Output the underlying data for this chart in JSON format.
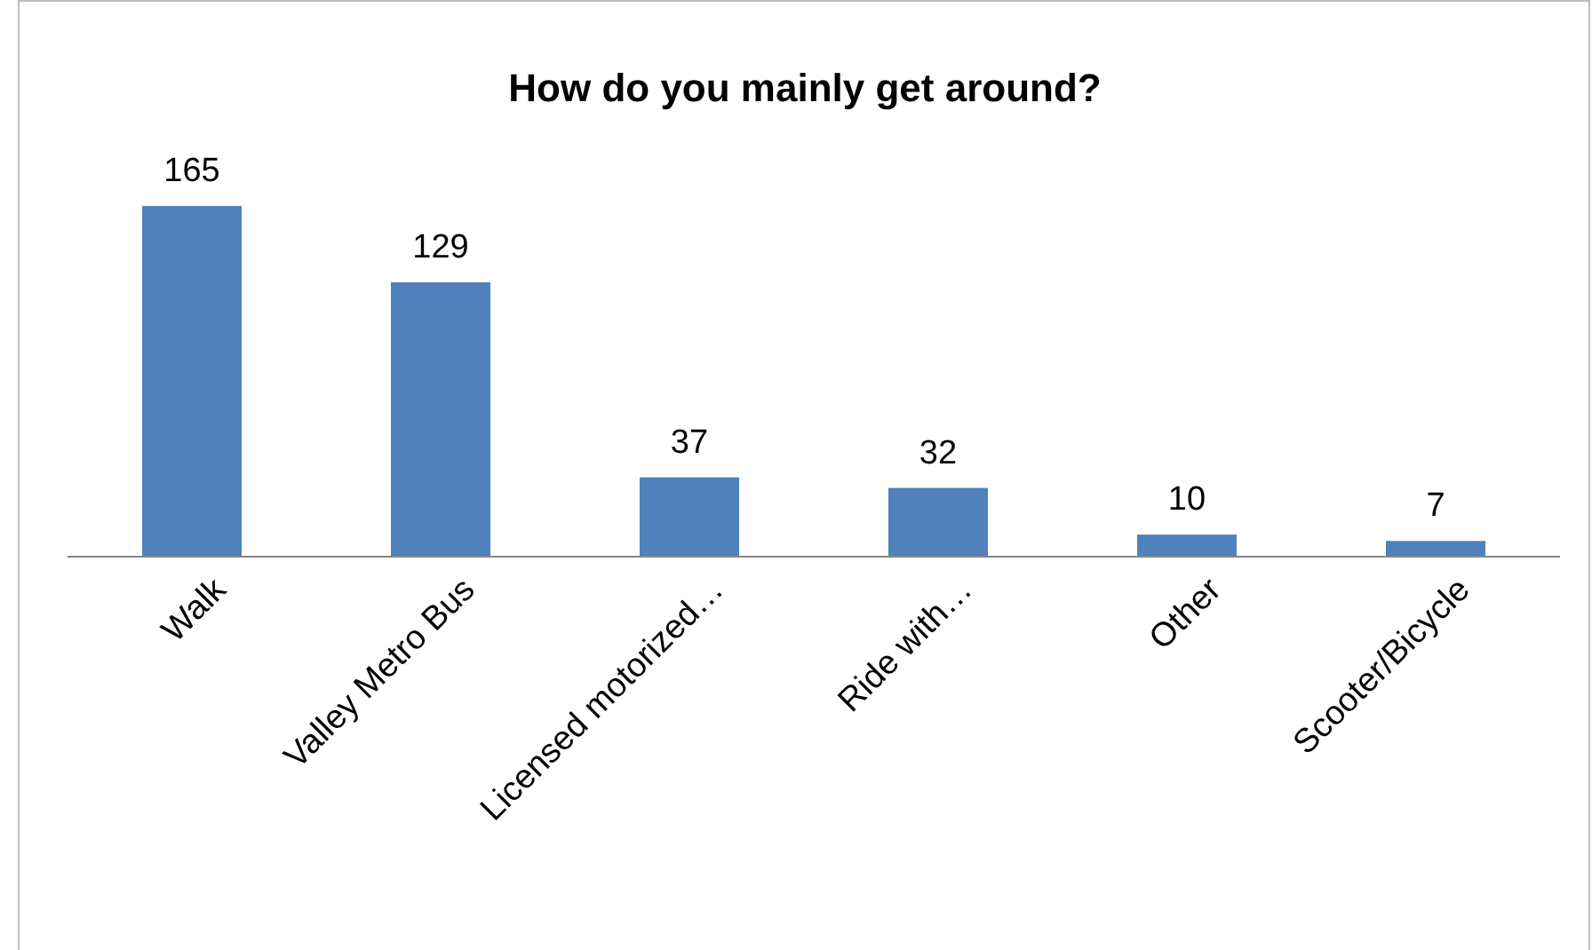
{
  "chart_data": {
    "type": "bar",
    "title": "How do you mainly get around?",
    "categories": [
      "Walk",
      "Valley Metro Bus",
      "Licensed motorized…",
      "Ride with…",
      "Other",
      "Scooter/Bicycle"
    ],
    "values": [
      165,
      129,
      37,
      32,
      10,
      7
    ],
    "color": "#4f81bd",
    "data_labels": true
  }
}
